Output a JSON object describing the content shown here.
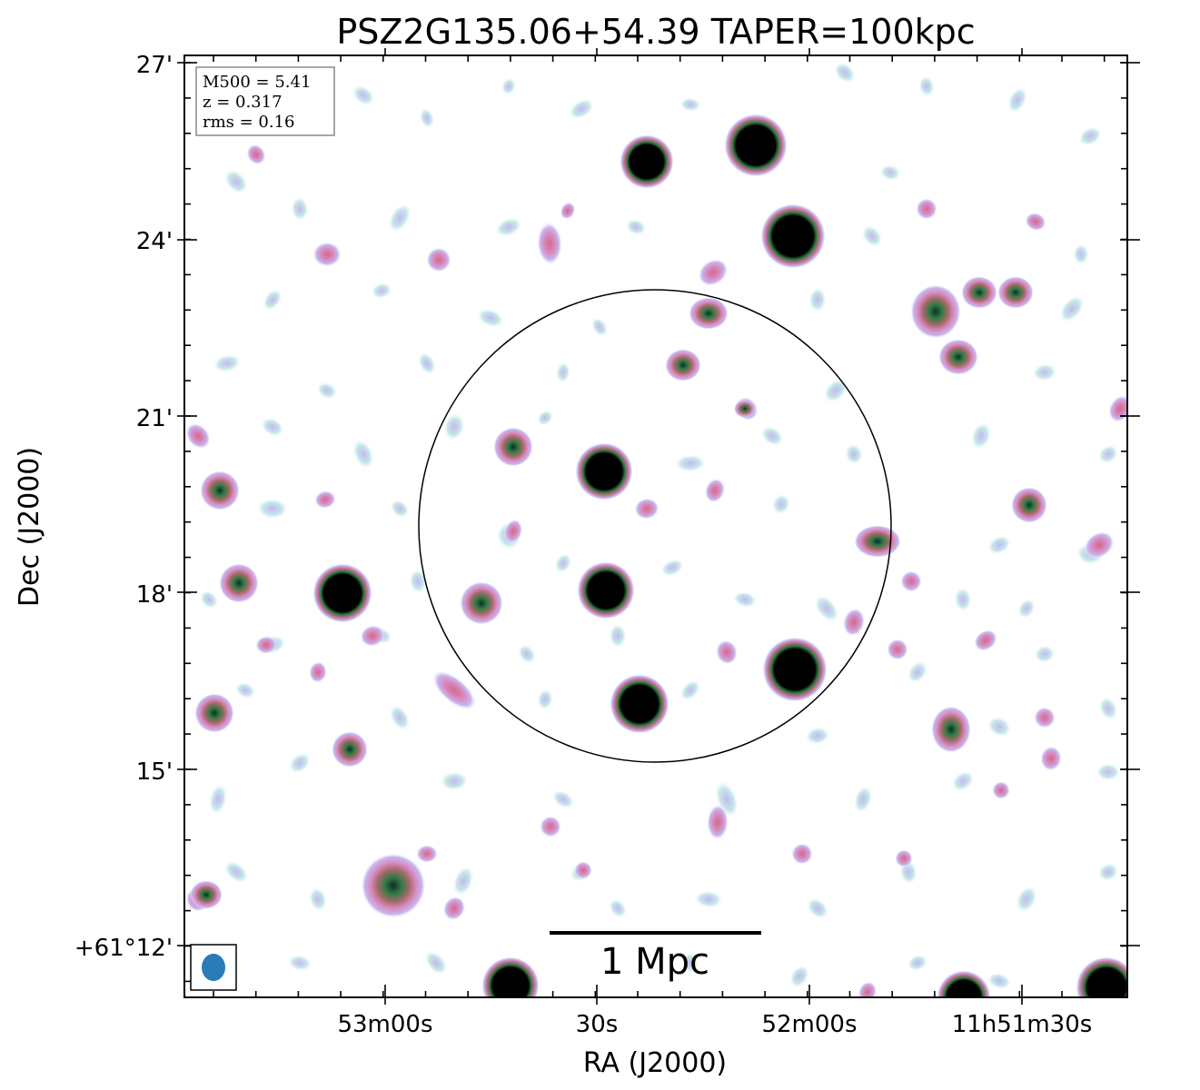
{
  "figure": {
    "title": "PSZ2G135.06+54.39 TAPER=100kpc",
    "info_box": {
      "lines": [
        "M500 = 5.41",
        "z = 0.317",
        "rms = 0.16"
      ]
    },
    "scalebar_label": "1 Mpc",
    "x_axis": {
      "label": "RA (J2000)",
      "ticks": [
        "53m00s",
        "30s",
        "52m00s",
        "11h51m30s"
      ]
    },
    "y_axis": {
      "label": "Dec (J2000)",
      "ticks": [
        "27'",
        "24'",
        "21'",
        "18'",
        "15'",
        "+61°12'"
      ]
    },
    "colors": {
      "background": "#ffffff",
      "faint": "#c6e8ea",
      "low": "#c5b8ee",
      "mid": "#d98ac0",
      "high": "#2f7a43",
      "peak": "#000000",
      "beam": "#2a7bb8",
      "circle": "#000000"
    }
  }
}
